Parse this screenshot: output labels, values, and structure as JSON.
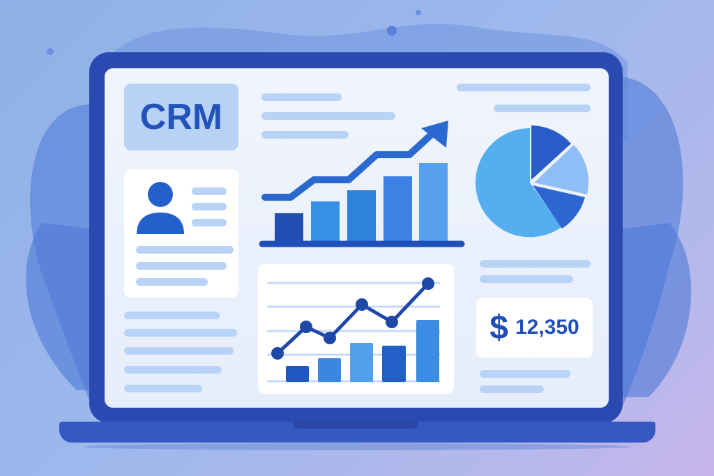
{
  "brand": {
    "label": "CRM"
  },
  "revenue": {
    "currency_symbol": "$",
    "value": "12,350"
  },
  "colors": {
    "bezel": "#2a4ab2",
    "screen": "#eef3fc",
    "accent": "#2352b8",
    "placeholder_line": "#b9d3f7"
  },
  "icons": [
    "user-avatar-icon",
    "trend-arrow-icon",
    "pie-chart-icon",
    "dollar-icon"
  ]
}
